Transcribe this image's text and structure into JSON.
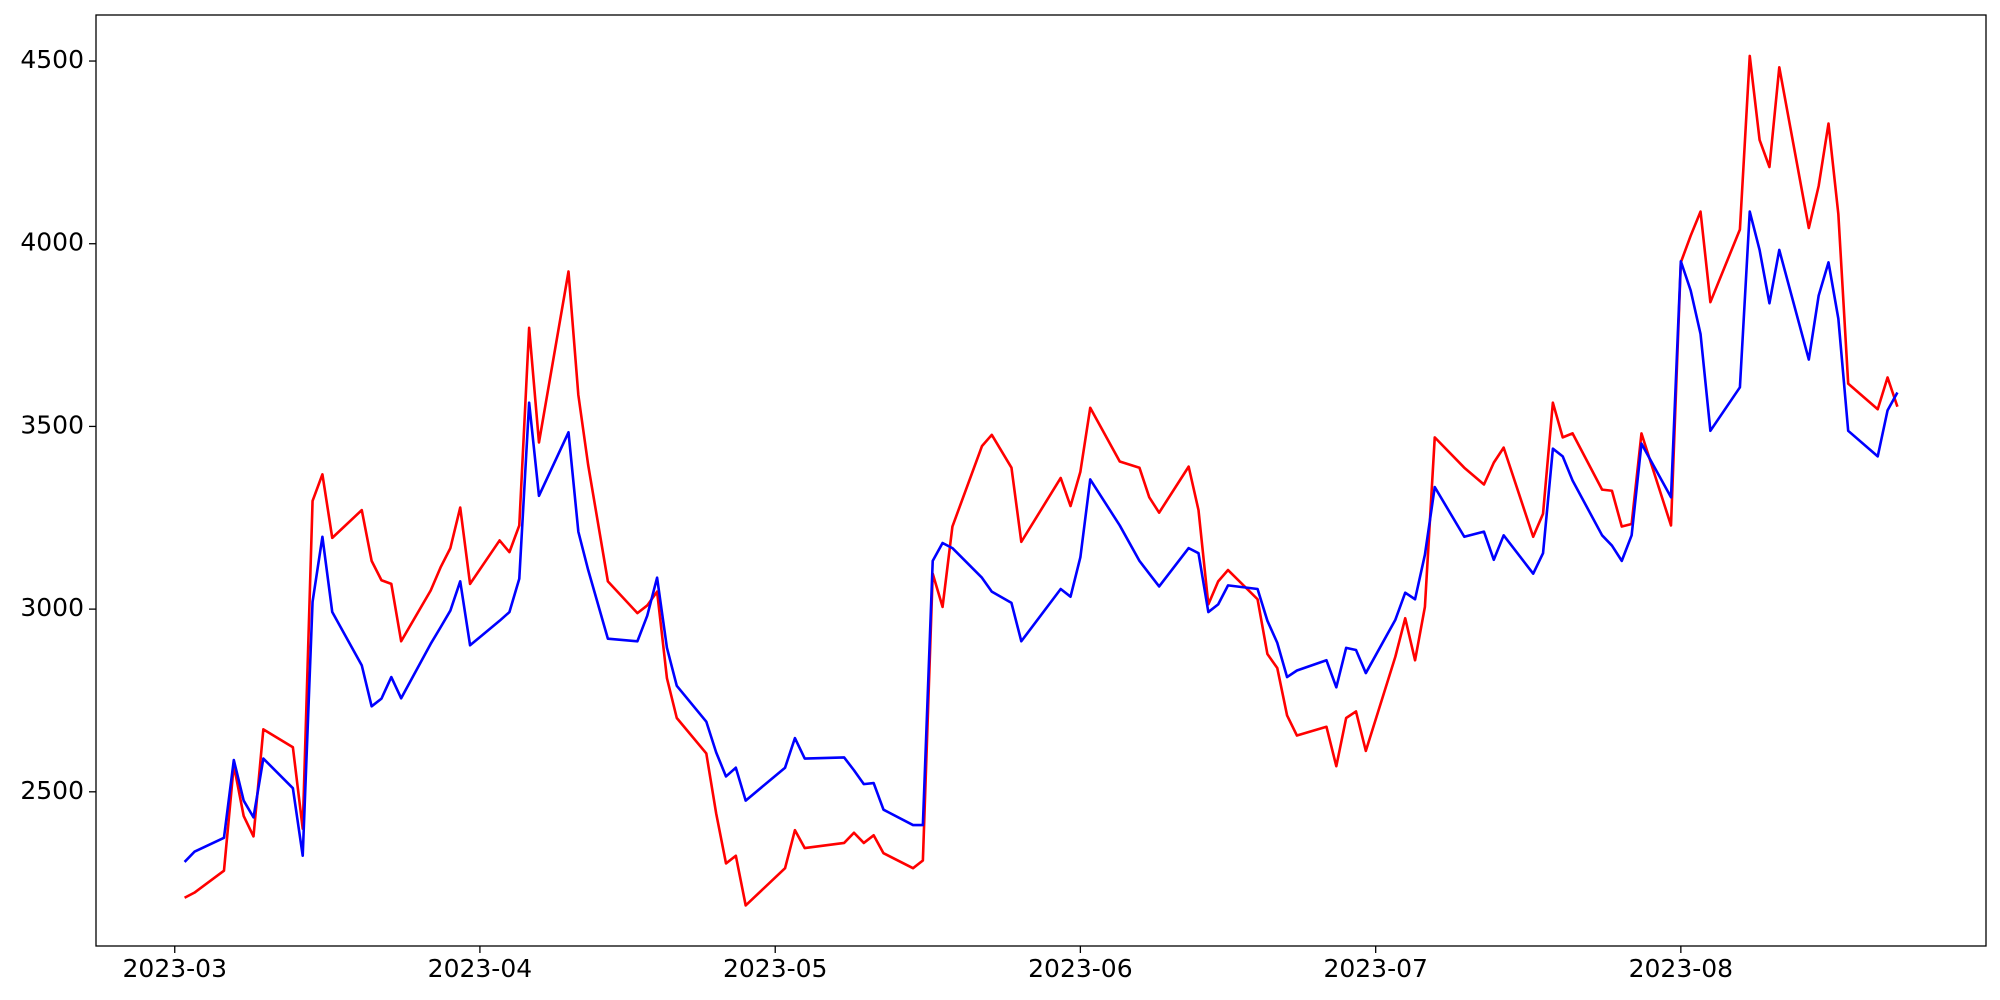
{
  "chart_data": {
    "type": "line",
    "x": [
      "2023-03-02",
      "2023-03-03",
      "2023-03-06",
      "2023-03-07",
      "2023-03-08",
      "2023-03-09",
      "2023-03-10",
      "2023-03-13",
      "2023-03-14",
      "2023-03-15",
      "2023-03-16",
      "2023-03-17",
      "2023-03-20",
      "2023-03-21",
      "2023-03-22",
      "2023-03-23",
      "2023-03-24",
      "2023-03-27",
      "2023-03-28",
      "2023-03-29",
      "2023-03-30",
      "2023-03-31",
      "2023-04-03",
      "2023-04-04",
      "2023-04-05",
      "2023-04-06",
      "2023-04-07",
      "2023-04-10",
      "2023-04-11",
      "2023-04-12",
      "2023-04-14",
      "2023-04-17",
      "2023-04-18",
      "2023-04-19",
      "2023-04-20",
      "2023-04-21",
      "2023-04-24",
      "2023-04-25",
      "2023-04-26",
      "2023-04-27",
      "2023-04-28",
      "2023-05-02",
      "2023-05-03",
      "2023-05-04",
      "2023-05-08",
      "2023-05-09",
      "2023-05-10",
      "2023-05-11",
      "2023-05-12",
      "2023-05-15",
      "2023-05-16",
      "2023-05-17",
      "2023-05-18",
      "2023-05-19",
      "2023-05-22",
      "2023-05-23",
      "2023-05-25",
      "2023-05-26",
      "2023-05-30",
      "2023-05-31",
      "2023-06-01",
      "2023-06-02",
      "2023-06-05",
      "2023-06-07",
      "2023-06-08",
      "2023-06-09",
      "2023-06-12",
      "2023-06-13",
      "2023-06-14",
      "2023-06-15",
      "2023-06-16",
      "2023-06-19",
      "2023-06-20",
      "2023-06-21",
      "2023-06-22",
      "2023-06-23",
      "2023-06-26",
      "2023-06-27",
      "2023-06-28",
      "2023-06-29",
      "2023-06-30",
      "2023-07-03",
      "2023-07-04",
      "2023-07-05",
      "2023-07-06",
      "2023-07-07",
      "2023-07-10",
      "2023-07-12",
      "2023-07-13",
      "2023-07-14",
      "2023-07-17",
      "2023-07-18",
      "2023-07-19",
      "2023-07-20",
      "2023-07-21",
      "2023-07-24",
      "2023-07-25",
      "2023-07-26",
      "2023-07-27",
      "2023-07-28",
      "2023-07-31",
      "2023-08-01",
      "2023-08-02",
      "2023-08-03",
      "2023-08-04",
      "2023-08-07",
      "2023-08-08",
      "2023-08-09",
      "2023-08-10",
      "2023-08-11",
      "2023-08-14",
      "2023-08-15",
      "2023-08-16",
      "2023-08-17",
      "2023-08-18",
      "2023-08-21",
      "2023-08-22",
      "2023-08-23"
    ],
    "series": [
      {
        "color": "#ff0000",
        "values": [
          2210,
          2224,
          2284,
          2573,
          2434,
          2378,
          2671,
          2622,
          2399,
          3296,
          3369,
          3195,
          3271,
          3132,
          3079,
          3069,
          2912,
          3051,
          3114,
          3167,
          3278,
          3069,
          3188,
          3156,
          3229,
          3770,
          3456,
          3924,
          3586,
          3394,
          3076,
          2989,
          3010,
          3048,
          2811,
          2702,
          2605,
          2441,
          2304,
          2325,
          2189,
          2291,
          2395,
          2346,
          2360,
          2388,
          2360,
          2381,
          2332,
          2291,
          2312,
          3097,
          3006,
          3226,
          3446,
          3477,
          3387,
          3184,
          3359,
          3282,
          3376,
          3551,
          3404,
          3387,
          3306,
          3264,
          3390,
          3271,
          3013,
          3076,
          3107,
          3027,
          2877,
          2839,
          2709,
          2654,
          2678,
          2570,
          2702,
          2720,
          2612,
          2870,
          2975,
          2860,
          3006,
          3470,
          3387,
          3341,
          3401,
          3442,
          3198,
          3261,
          3565,
          3470,
          3481,
          3327,
          3324,
          3226,
          3233,
          3481,
          3229,
          3949,
          4022,
          4088,
          3840,
          4039,
          4514,
          4284,
          4210,
          4483,
          4043,
          4158,
          4329,
          4081,
          3617,
          3547,
          3634,
          3554
        ]
      },
      {
        "color": "#0000ff",
        "values": [
          2308,
          2336,
          2374,
          2587,
          2476,
          2430,
          2591,
          2510,
          2325,
          3020,
          3198,
          2992,
          2846,
          2734,
          2755,
          2814,
          2756,
          2905,
          2950,
          2996,
          3076,
          2901,
          2968,
          2992,
          3083,
          3565,
          3310,
          3484,
          3212,
          3107,
          2919,
          2912,
          2982,
          3086,
          2894,
          2790,
          2692,
          2608,
          2542,
          2566,
          2476,
          2566,
          2647,
          2591,
          2594,
          2559,
          2521,
          2524,
          2451,
          2409,
          2409,
          3132,
          3181,
          3167,
          3086,
          3048,
          3017,
          2912,
          3055,
          3034,
          3142,
          3355,
          3229,
          3132,
          3097,
          3062,
          3167,
          3153,
          2992,
          3013,
          3065,
          3055,
          2968,
          2908,
          2814,
          2832,
          2860,
          2786,
          2894,
          2888,
          2825,
          2971,
          3045,
          3027,
          3149,
          3334,
          3198,
          3212,
          3135,
          3202,
          3097,
          3153,
          3439,
          3418,
          3352,
          3202,
          3174,
          3132,
          3202,
          3453,
          3306,
          3952,
          3872,
          3753,
          3488,
          3607,
          4088,
          3983,
          3837,
          3983,
          3683,
          3858,
          3949,
          3795,
          3488,
          3418,
          3544,
          3593
        ]
      }
    ],
    "xlim": [
      "2023-02-21",
      "2023-09-01"
    ],
    "xticks": [
      {
        "value": "2023-03-01",
        "label": "2023-03"
      },
      {
        "value": "2023-04-01",
        "label": "2023-04"
      },
      {
        "value": "2023-05-01",
        "label": "2023-05"
      },
      {
        "value": "2023-06-01",
        "label": "2023-06"
      },
      {
        "value": "2023-07-01",
        "label": "2023-07"
      },
      {
        "value": "2023-08-01",
        "label": "2023-08"
      }
    ],
    "ylim": [
      2078,
      4626
    ],
    "yticks": [
      2500,
      3000,
      3500,
      4000,
      4500
    ],
    "grid": false
  }
}
